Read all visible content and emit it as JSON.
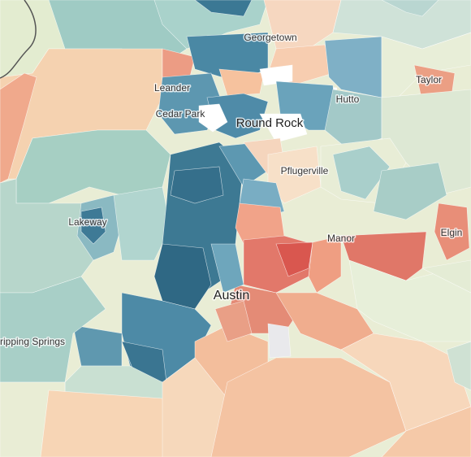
{
  "places": [
    {
      "label": "Georgetown"
    },
    {
      "label": "Taylor"
    },
    {
      "label": "Leander"
    },
    {
      "label": "Hutto"
    },
    {
      "label": "Cedar Park"
    },
    {
      "label": "Round Rock"
    },
    {
      "label": "Pflugerville"
    },
    {
      "label": "Lakeway"
    },
    {
      "label": "Manor"
    },
    {
      "label": "Elgin"
    },
    {
      "label": "Austin"
    },
    {
      "label": "ripping Springs"
    }
  ]
}
